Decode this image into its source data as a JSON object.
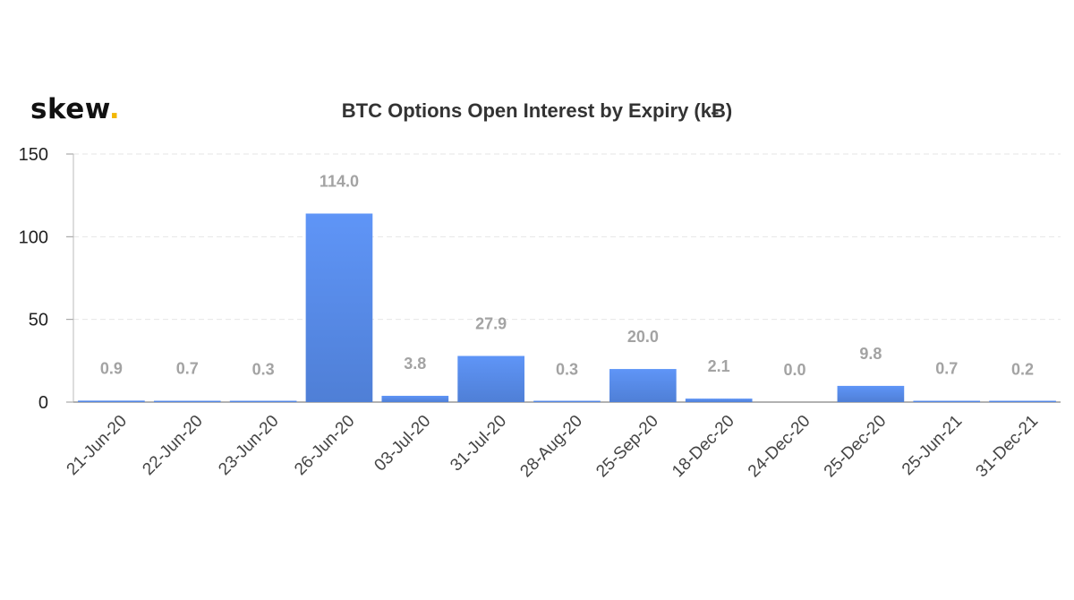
{
  "logo": {
    "text": "skew",
    "dot": "."
  },
  "chart_data": {
    "type": "bar",
    "title": "BTC Options Open Interest by Expiry (kɃ)",
    "xlabel": "",
    "ylabel": "",
    "ylim": [
      0,
      150
    ],
    "yticks": [
      0,
      50,
      100,
      150
    ],
    "grid": true,
    "bar_color": "#5b8ef0",
    "categories": [
      "21-Jun-20",
      "22-Jun-20",
      "23-Jun-20",
      "26-Jun-20",
      "03-Jul-20",
      "31-Jul-20",
      "28-Aug-20",
      "25-Sep-20",
      "18-Dec-20",
      "24-Dec-20",
      "25-Dec-20",
      "25-Jun-21",
      "31-Dec-21"
    ],
    "values": [
      0.9,
      0.7,
      0.3,
      114.0,
      3.8,
      27.9,
      0.3,
      20.0,
      2.1,
      0.0,
      9.8,
      0.7,
      0.2
    ],
    "data_labels": [
      "0.9",
      "0.7",
      "0.3",
      "114.0",
      "3.8",
      "27.9",
      "0.3",
      "20.0",
      "2.1",
      "0.0",
      "9.8",
      "0.7",
      "0.2"
    ]
  }
}
